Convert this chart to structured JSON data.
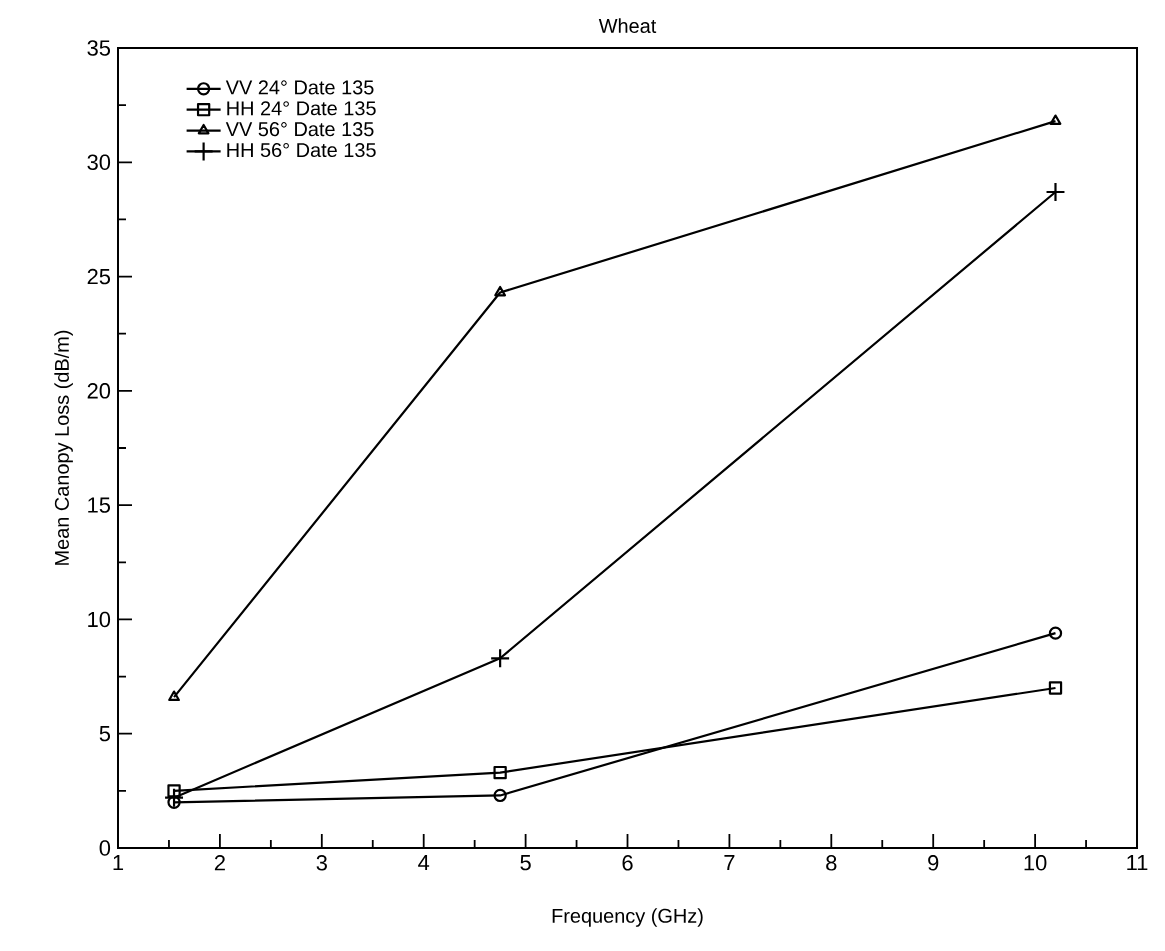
{
  "chart_data": {
    "type": "line",
    "title": "Wheat",
    "xlabel": "Frequency (GHz)",
    "ylabel": "Mean Canopy Loss (dB/m)",
    "x": [
      1.55,
      4.75,
      10.2
    ],
    "series": [
      {
        "name": "VV  24°  Date 135",
        "color": "#000000",
        "marker": "circle",
        "values": [
          2.0,
          2.3,
          9.4
        ]
      },
      {
        "name": "HH  24°  Date 135",
        "color": "#000000",
        "marker": "square",
        "values": [
          2.5,
          3.3,
          7.0
        ]
      },
      {
        "name": "VV  56°  Date 135",
        "color": "#000000",
        "marker": "triangle",
        "values": [
          6.6,
          24.3,
          31.8
        ]
      },
      {
        "name": "HH  56°  Date 135",
        "color": "#000000",
        "marker": "cross",
        "values": [
          2.2,
          8.3,
          28.7
        ]
      }
    ],
    "xlim": [
      1,
      11
    ],
    "xticks": [
      1,
      2,
      3,
      4,
      5,
      6,
      7,
      8,
      9,
      10,
      11
    ],
    "ylim": [
      0,
      35
    ],
    "yticks": [
      0,
      5,
      10,
      15,
      20,
      25,
      30,
      35
    ],
    "grid": false,
    "legend": "top left",
    "line_style": "solid"
  }
}
